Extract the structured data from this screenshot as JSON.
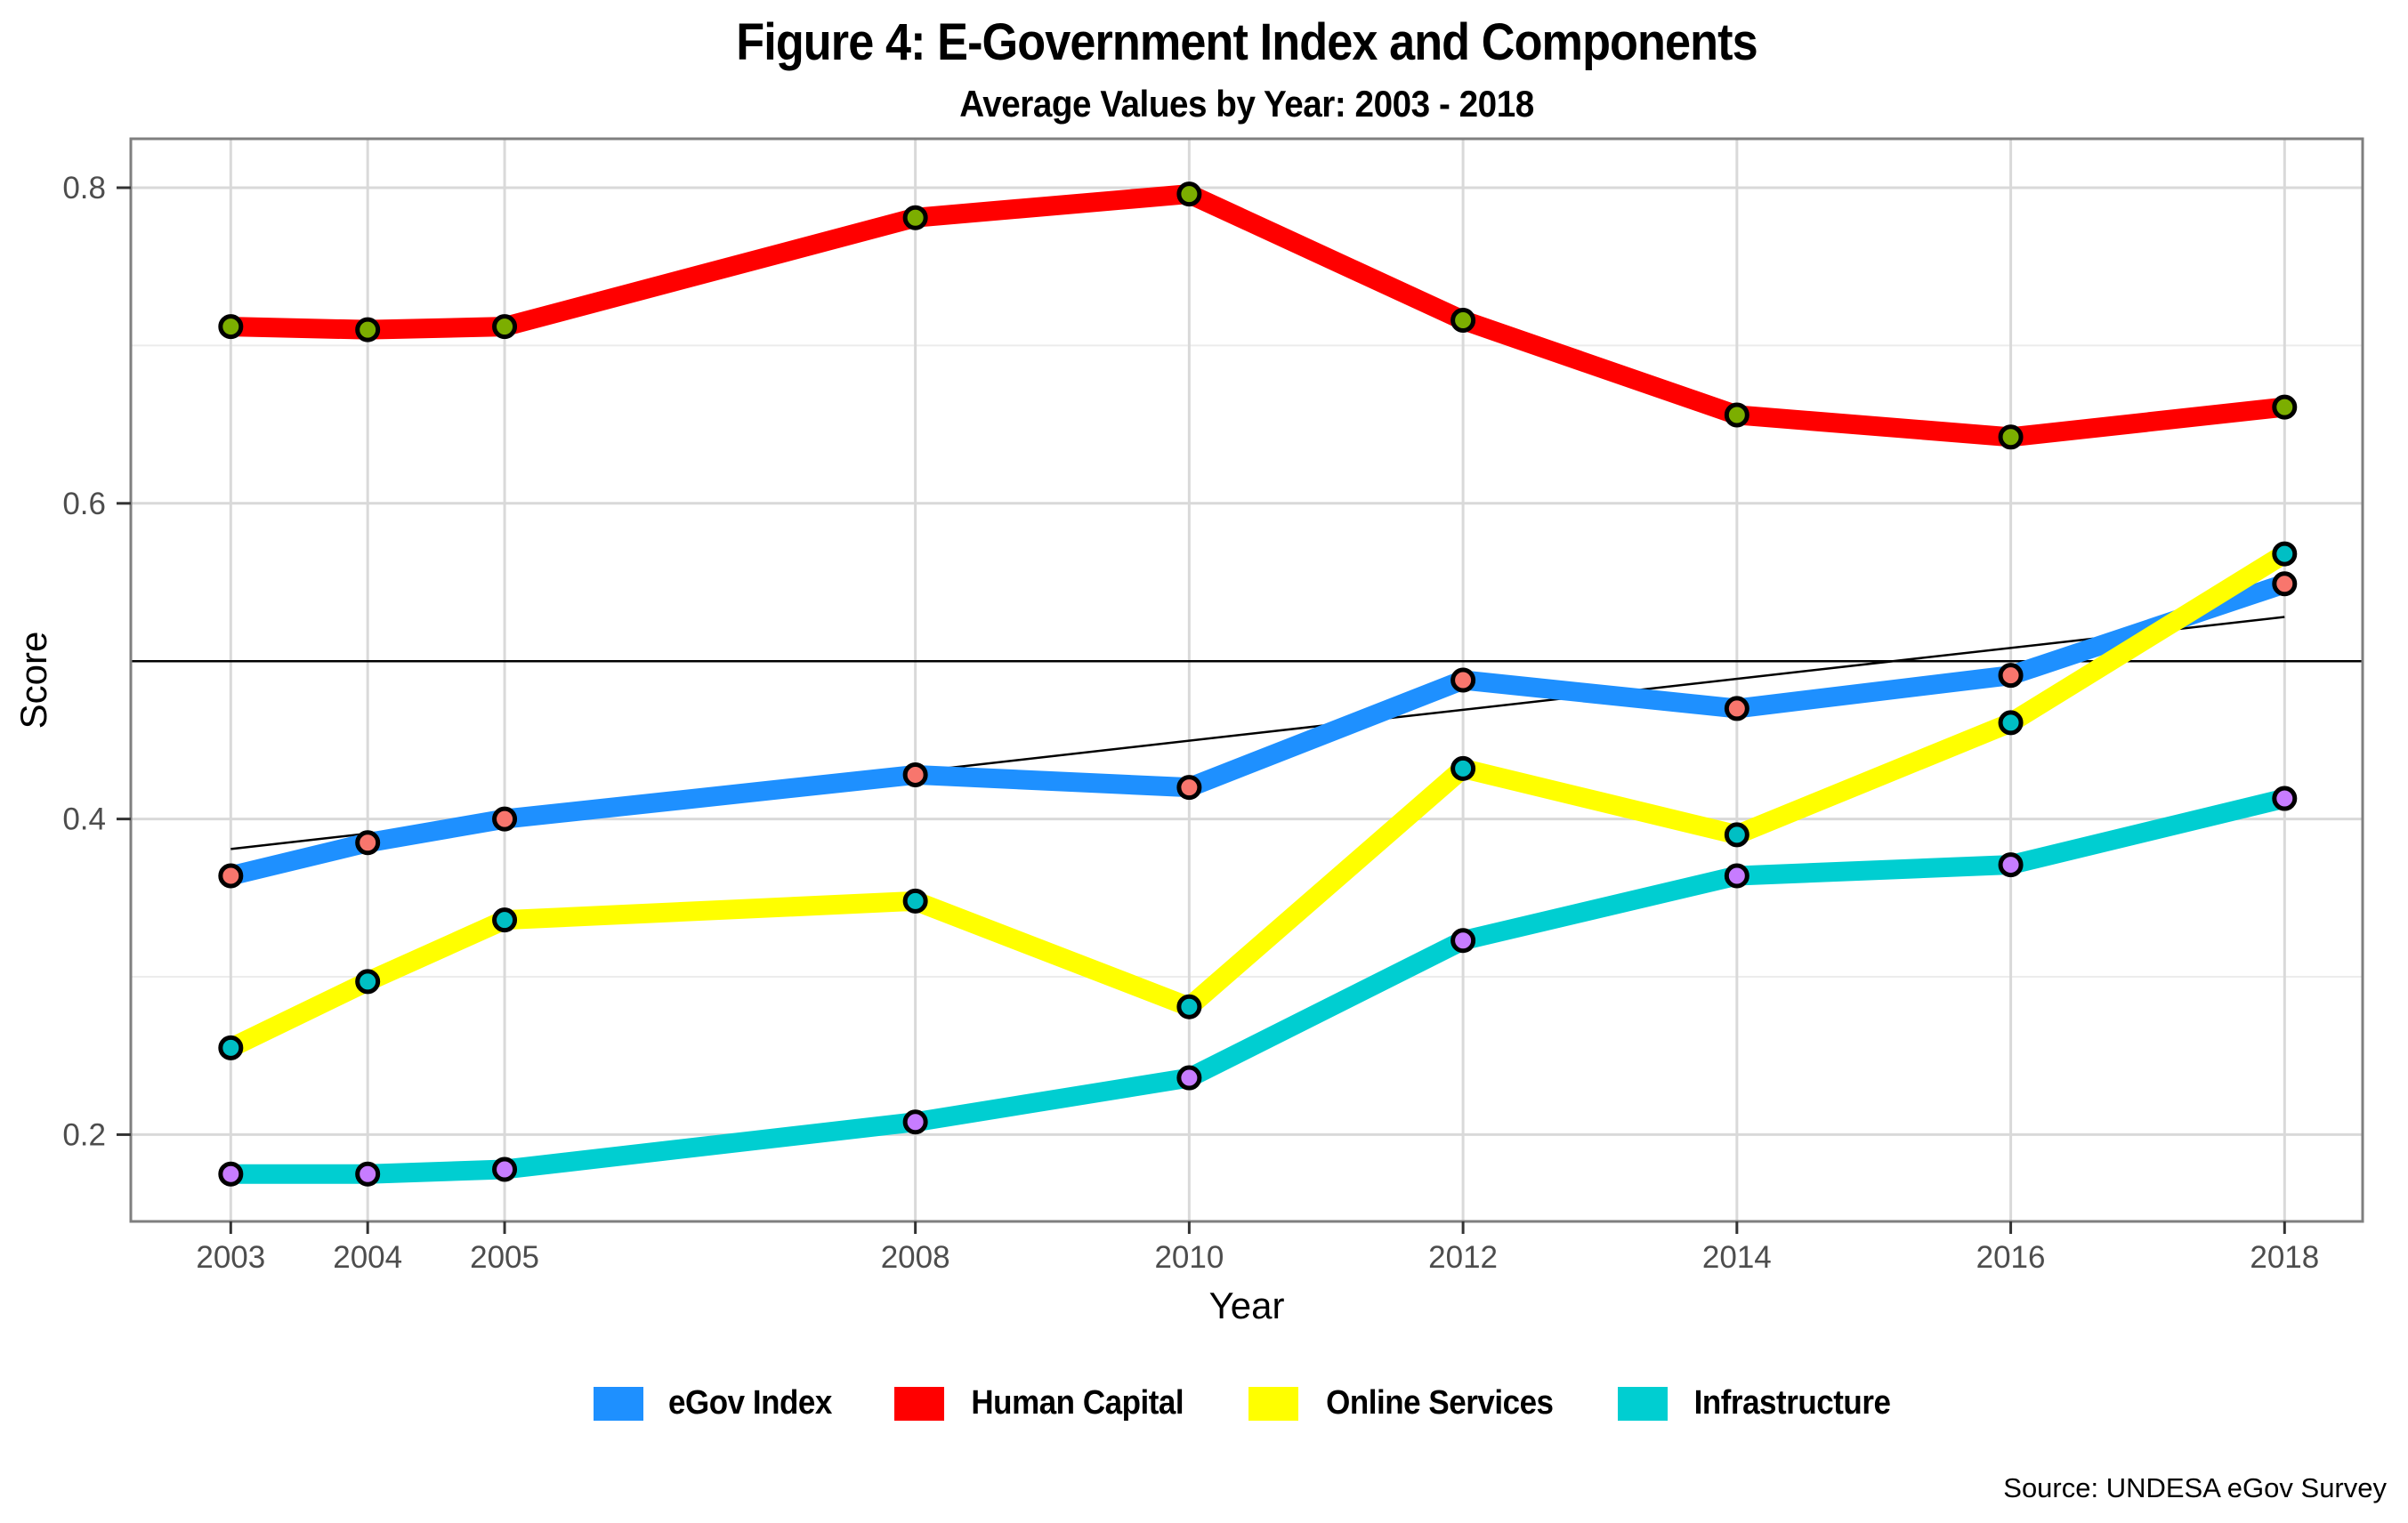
{
  "chart_data": {
    "type": "line",
    "title": "Figure 4: E-Government Index and Components",
    "subtitle": "Average Values by Year: 2003 - 2018",
    "xlabel": "Year",
    "ylabel": "Score",
    "source_note": "Source: UNDESA eGov Survey",
    "x_ticks": [
      2003,
      2004,
      2005,
      2008,
      2010,
      2012,
      2014,
      2016,
      2018
    ],
    "y_ticks": [
      0.2,
      0.4,
      0.6,
      0.8
    ],
    "y_minor_ticks": [
      0.3,
      0.5,
      0.7
    ],
    "xlim": [
      2002.27,
      2018.57
    ],
    "ylim": [
      0.145,
      0.831
    ],
    "grid": true,
    "legend_position": "bottom",
    "x": [
      2003,
      2004,
      2005,
      2008,
      2010,
      2012,
      2014,
      2016,
      2018
    ],
    "series": [
      {
        "name": "eGov Index",
        "line_color": "#1E90FF",
        "point_color": "#F8766D",
        "values": [
          0.364,
          0.385,
          0.4,
          0.428,
          0.42,
          0.488,
          0.47,
          0.491,
          0.549
        ]
      },
      {
        "name": "Human Capital",
        "line_color": "#FF0000",
        "point_color": "#7CAE00",
        "values": [
          0.712,
          0.71,
          0.712,
          0.781,
          0.796,
          0.716,
          0.656,
          0.642,
          0.661
        ]
      },
      {
        "name": "Online Services",
        "line_color": "#FFFF00",
        "point_color": "#00BFC4",
        "values": [
          0.255,
          0.297,
          0.336,
          0.348,
          0.281,
          0.432,
          0.39,
          0.461,
          0.568
        ]
      },
      {
        "name": "Infrastructure",
        "line_color": "#00CED1",
        "point_color": "#C77CFF",
        "values": [
          0.175,
          0.175,
          0.178,
          0.208,
          0.236,
          0.323,
          0.364,
          0.371,
          0.413
        ]
      }
    ],
    "reference_lines": {
      "hline": {
        "y": 0.5,
        "color": "#000000"
      },
      "trend": {
        "x1": 2003,
        "y1": 0.381,
        "x2": 2018,
        "y2": 0.528,
        "color": "#000000"
      }
    },
    "style": {
      "grid_major_color": "#D9D9D9",
      "grid_minor_color": "#ECECEC",
      "panel_border_color": "#7F7F7F",
      "tick_color": "#333333",
      "tick_label_color": "#4D4D4D",
      "background": "#FFFFFF"
    }
  }
}
